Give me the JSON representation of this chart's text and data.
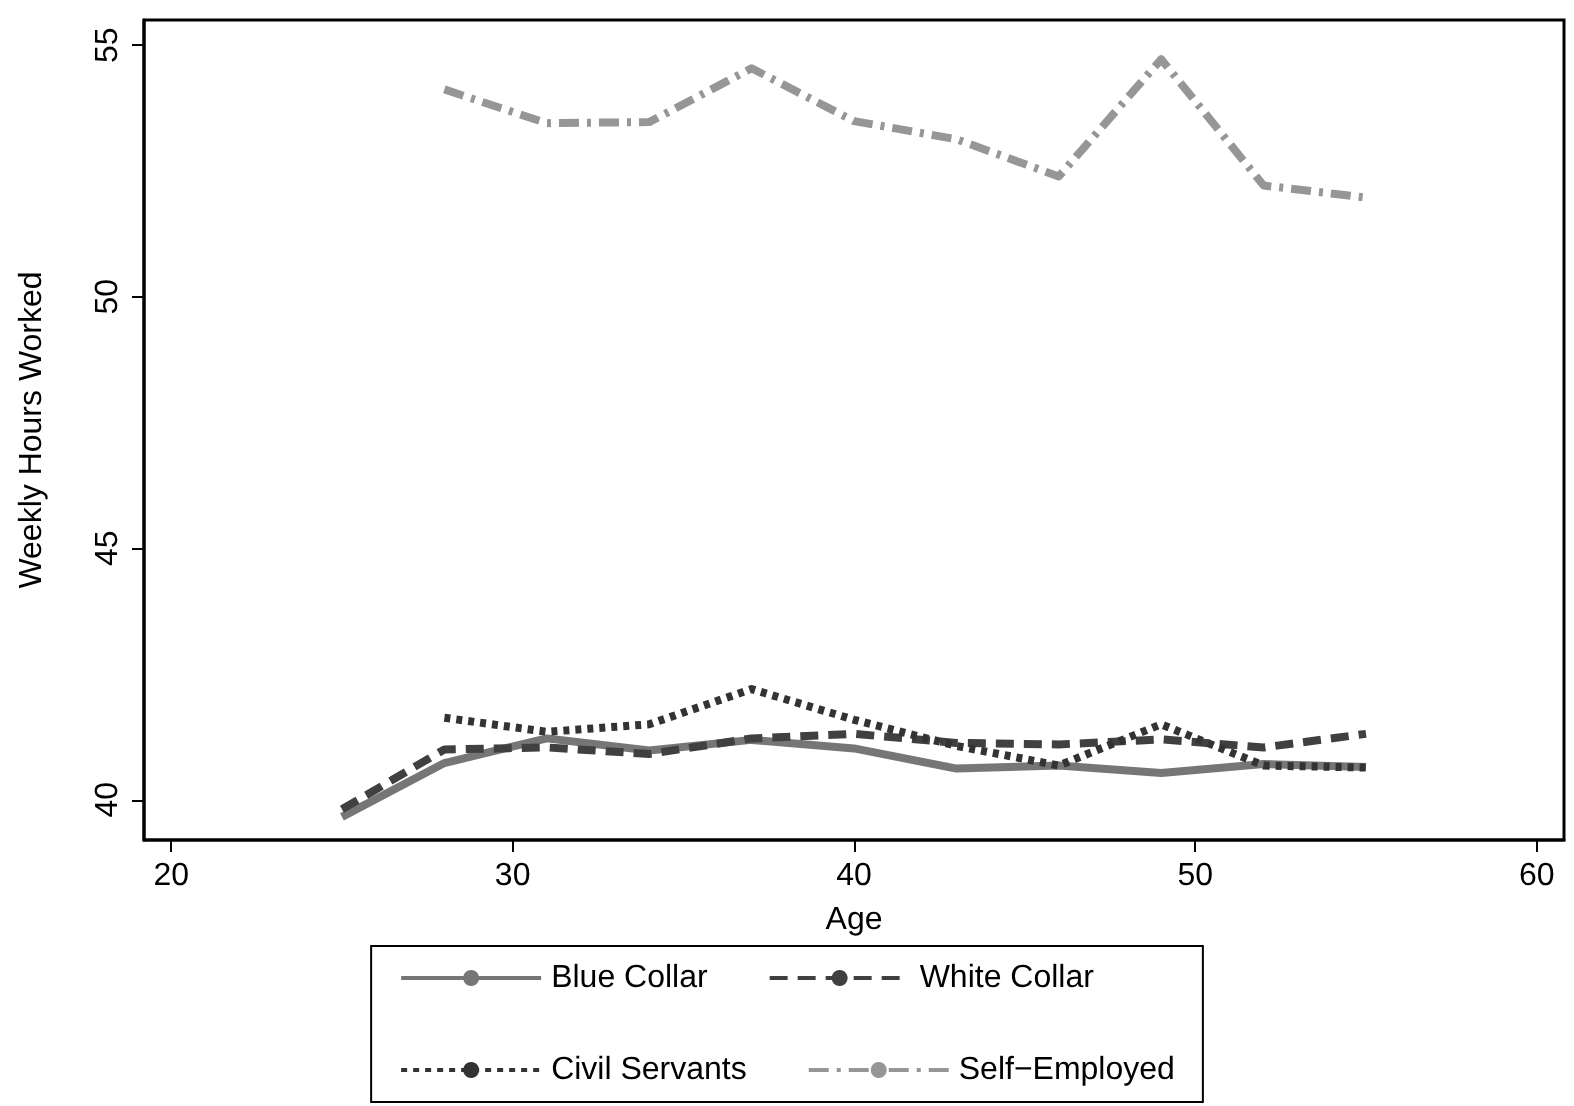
{
  "chart_data": {
    "type": "line",
    "xlabel": "Age",
    "ylabel": "Weekly Hours Worked",
    "xlim": [
      19.2,
      60.8
    ],
    "xticks": [
      20,
      30,
      40,
      50,
      60
    ],
    "ylim": [
      39.2,
      55.5
    ],
    "yticks": [
      40,
      45,
      50,
      55
    ],
    "grid": false,
    "legend": "bottom",
    "marker": "none",
    "series": [
      {
        "name": "Blue Collar",
        "color": "#767676",
        "line_style": "solid",
        "x": [
          25,
          28,
          31,
          34,
          37,
          40,
          43,
          46,
          49,
          52,
          55
        ],
        "values": [
          39.66,
          40.73,
          41.22,
          40.98,
          41.19,
          41.02,
          40.62,
          40.68,
          40.53,
          40.71,
          40.65
        ]
      },
      {
        "name": "White Collar",
        "color": "#404040",
        "line_style": "dashed",
        "x": [
          25,
          28,
          31,
          34,
          37,
          40,
          43,
          46,
          49,
          52,
          55
        ],
        "values": [
          39.81,
          41.0,
          41.04,
          40.91,
          41.22,
          41.31,
          41.13,
          41.1,
          41.2,
          41.04,
          41.31
        ]
      },
      {
        "name": "Civil Servants",
        "color": "#333333",
        "line_style": "dotted",
        "x": [
          28,
          31,
          34,
          37,
          40,
          43,
          46,
          49,
          52,
          55
        ],
        "values": [
          41.63,
          41.35,
          41.5,
          42.2,
          41.59,
          41.07,
          40.68,
          41.5,
          40.68,
          40.64
        ]
      },
      {
        "name": "Self−Employed",
        "color": "#969696",
        "line_style": "dashdot",
        "x": [
          28,
          31,
          34,
          37,
          40,
          43,
          46,
          49,
          52,
          55
        ],
        "values": [
          54.12,
          53.45,
          53.47,
          54.54,
          53.49,
          53.13,
          52.39,
          54.72,
          52.21,
          51.97
        ]
      }
    ]
  }
}
